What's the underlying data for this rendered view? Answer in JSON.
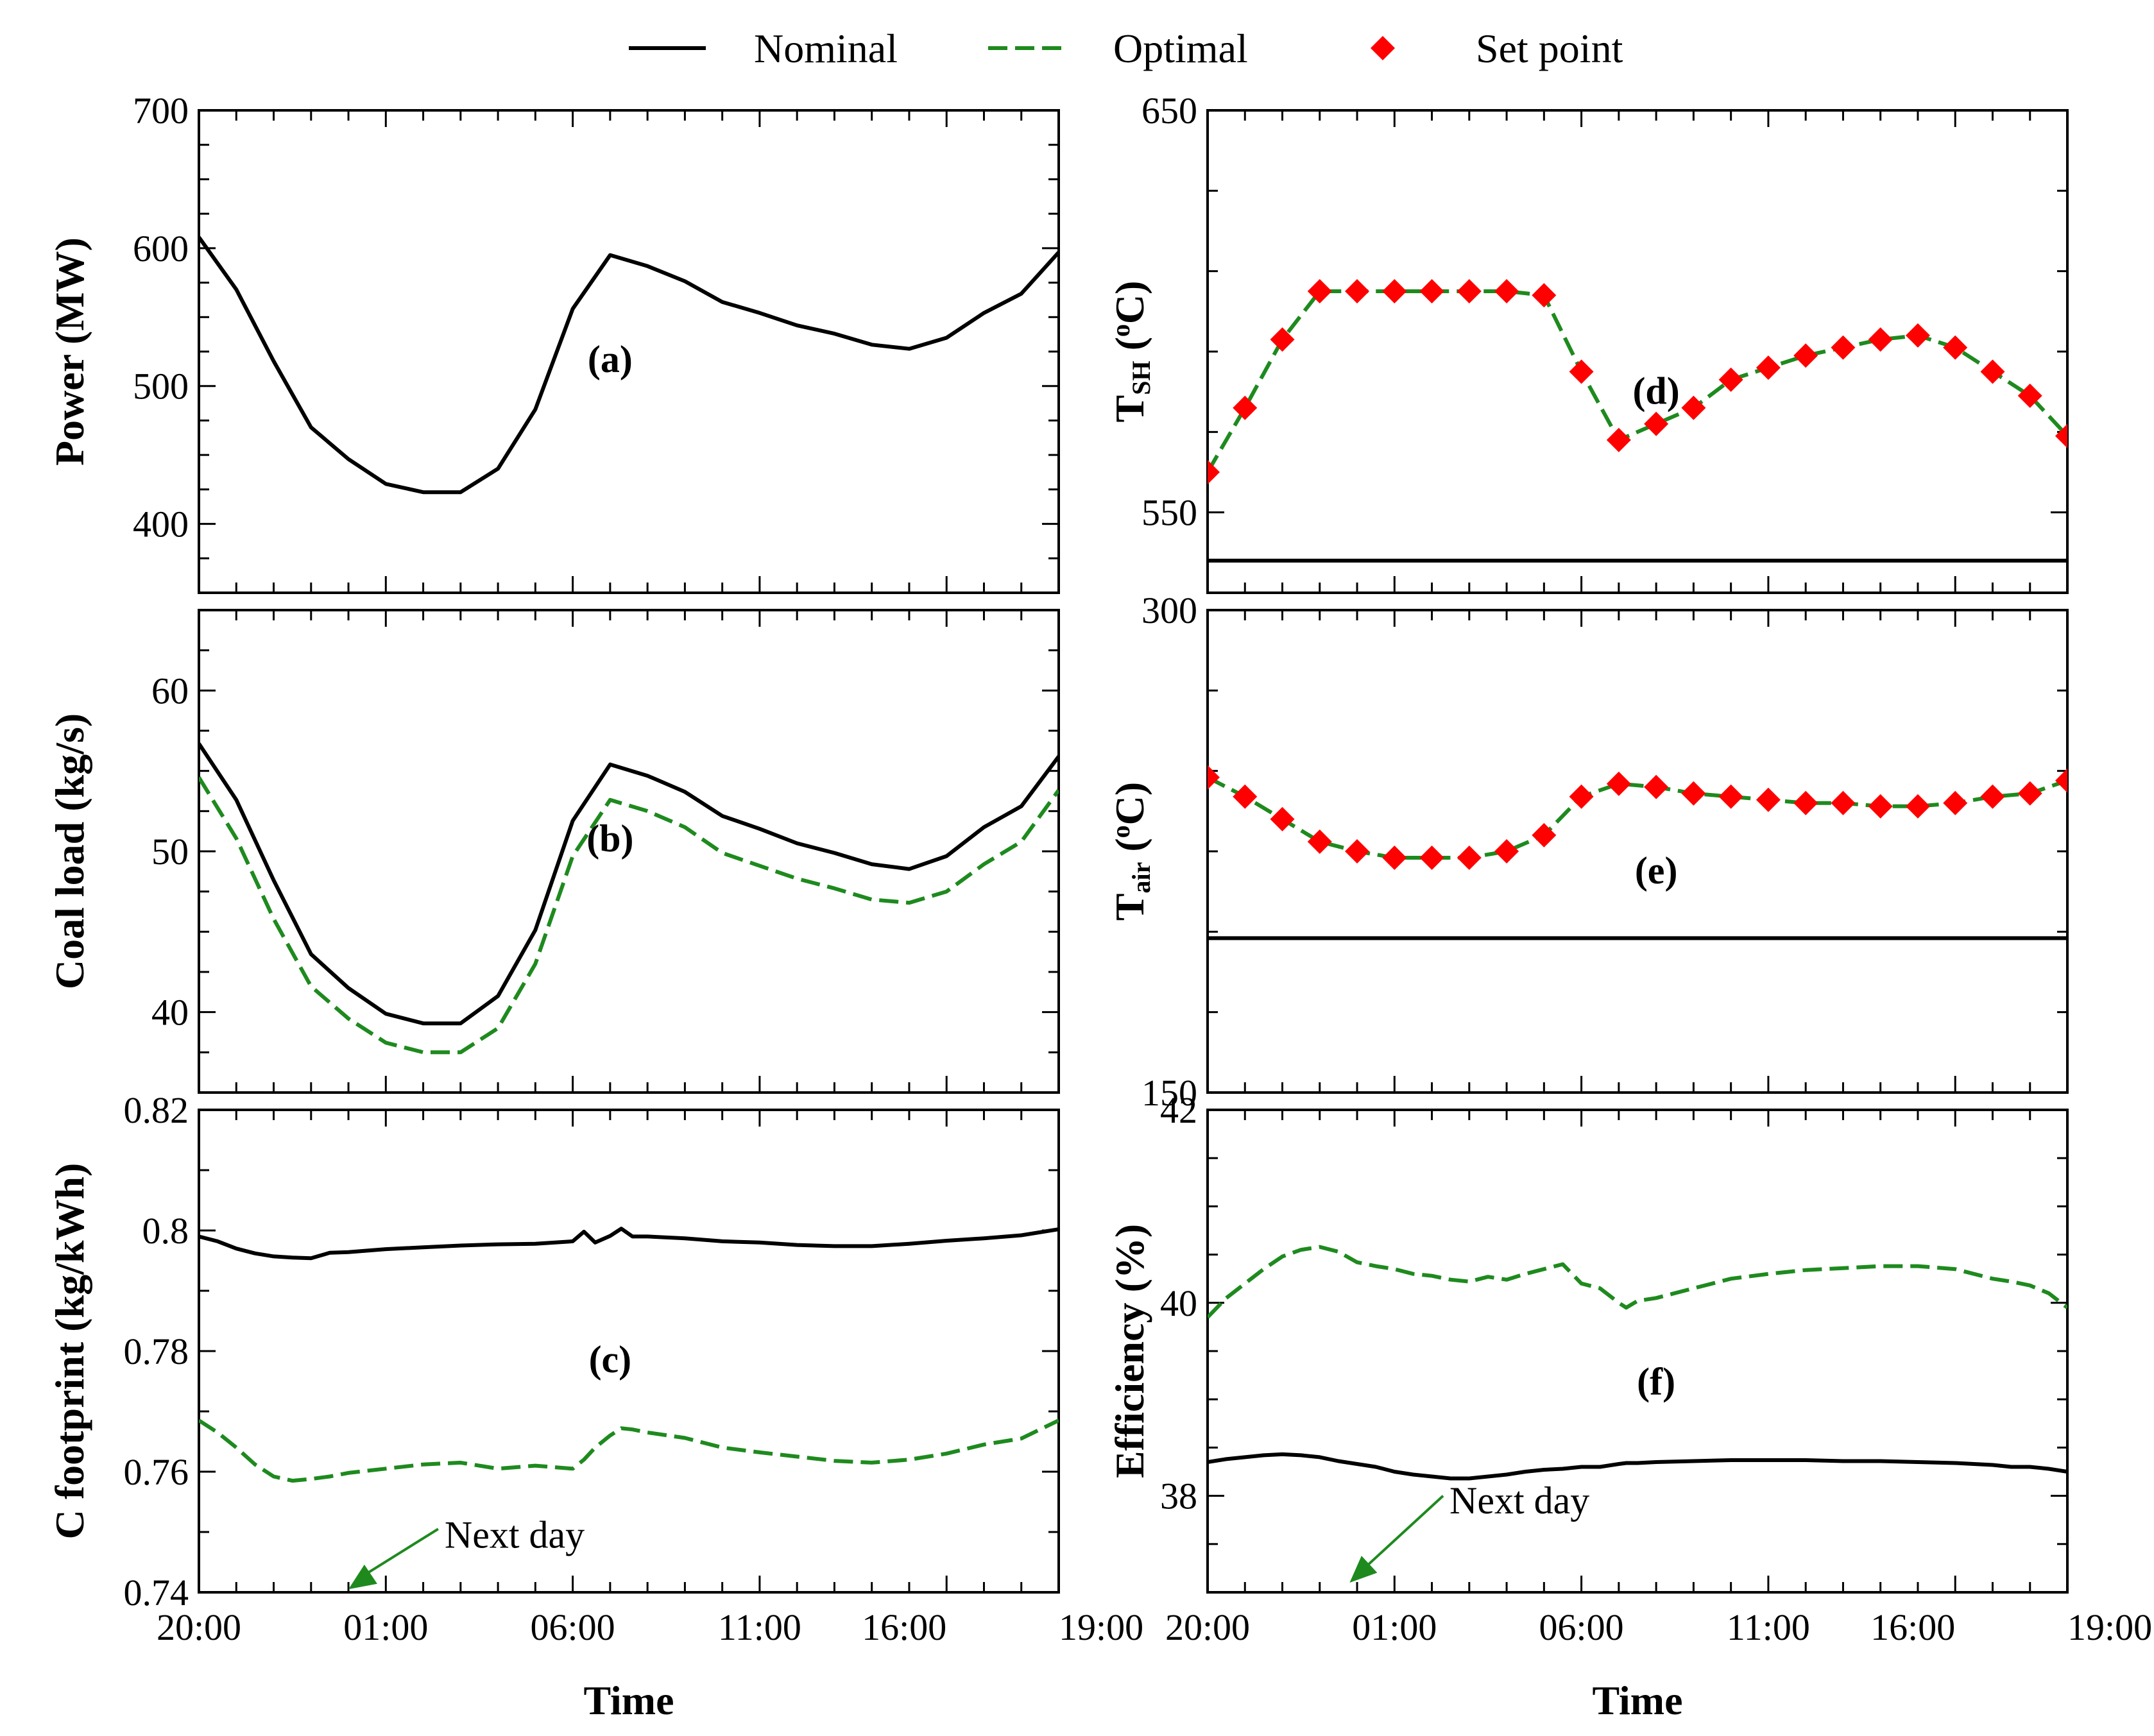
{
  "colors": {
    "nominal": "#000000",
    "optimal": "#1e8a1e",
    "setpoint": "#ff0000"
  },
  "legend": [
    {
      "key": "nominal",
      "label": "Nominal",
      "style": "solid"
    },
    {
      "key": "optimal",
      "label": "Optimal",
      "style": "dashed"
    },
    {
      "key": "setpoint",
      "label": "Set point",
      "style": "diamond"
    }
  ],
  "x_tick_labels": [
    "20:00",
    "01:00",
    "06:00",
    "11:00",
    "16:00",
    "19:00"
  ],
  "x_label": "Time",
  "chart_data": [
    {
      "id": "a",
      "type": "line",
      "label": "(a)",
      "ylabel": "Power (MW)",
      "ylabel_parts": [
        "Power (MW)"
      ],
      "x_range": [
        0,
        23
      ],
      "ylim": [
        350,
        700
      ],
      "yticks": [
        400,
        500,
        600,
        700
      ],
      "minor_per_major": 4,
      "label_pos": [
        11,
        510
      ],
      "x": [
        0,
        1,
        2,
        3,
        4,
        5,
        6,
        7,
        8,
        9,
        10,
        11,
        12,
        13,
        14,
        15,
        16,
        17,
        18,
        19,
        20,
        21,
        22,
        23
      ],
      "series": [
        {
          "name": "Nominal",
          "key": "nominal",
          "style": "solid",
          "values": [
            608,
            570,
            518,
            470,
            447,
            429,
            423,
            423,
            440,
            483,
            556,
            595,
            587,
            576,
            561,
            553,
            544,
            538,
            530,
            527,
            535,
            553,
            567,
            597
          ]
        }
      ]
    },
    {
      "id": "b",
      "type": "line",
      "label": "(b)",
      "ylabel": "Coal load (kg/s)",
      "ylabel_parts": [
        "Coal load (kg/s)"
      ],
      "x_range": [
        0,
        23
      ],
      "ylim": [
        35,
        65
      ],
      "yticks": [
        40,
        50,
        60
      ],
      "minor_per_major": 4,
      "label_pos": [
        11,
        50
      ],
      "x": [
        0,
        1,
        2,
        3,
        4,
        5,
        6,
        7,
        8,
        9,
        10,
        11,
        12,
        13,
        14,
        15,
        16,
        17,
        18,
        19,
        20,
        21,
        22,
        23
      ],
      "series": [
        {
          "name": "Nominal",
          "key": "nominal",
          "style": "solid",
          "values": [
            56.7,
            53.2,
            48.2,
            43.6,
            41.5,
            39.9,
            39.3,
            39.3,
            41.0,
            45.1,
            51.9,
            55.4,
            54.7,
            53.7,
            52.2,
            51.4,
            50.5,
            49.9,
            49.2,
            48.9,
            49.7,
            51.5,
            52.8,
            55.9
          ]
        },
        {
          "name": "Optimal",
          "key": "optimal",
          "style": "dashed",
          "values": [
            54.6,
            50.8,
            45.8,
            41.6,
            39.6,
            38.1,
            37.5,
            37.5,
            39.0,
            43.0,
            49.7,
            53.2,
            52.5,
            51.5,
            49.9,
            49.1,
            48.3,
            47.7,
            47.0,
            46.8,
            47.5,
            49.2,
            50.6,
            53.8
          ]
        }
      ]
    },
    {
      "id": "c",
      "type": "line",
      "label": "(c)",
      "ylabel": "C footprint (kg/kWh)",
      "ylabel_parts": [
        "C footprint (kg/kWh)"
      ],
      "x_range": [
        0,
        23
      ],
      "ylim": [
        0.74,
        0.82
      ],
      "yticks": [
        0.74,
        0.76,
        0.78,
        0.8,
        0.82
      ],
      "ytick_labels": [
        "0.74",
        "0.76",
        "0.78",
        "0.8",
        "0.82"
      ],
      "minor_per_major": 2,
      "label_pos": [
        11,
        0.7765
      ],
      "annotation": {
        "text": "Next day",
        "arrow_from": [
          6.4,
          0.7505
        ],
        "arrow_to": [
          4.0,
          0.7405
        ],
        "text_at": [
          6.4,
          0.7495
        ]
      },
      "x": [
        0,
        0.5,
        1,
        1.5,
        2,
        2.5,
        3,
        3.5,
        4,
        5,
        6,
        7,
        8,
        9,
        10,
        10.3,
        10.6,
        11,
        11.3,
        11.6,
        12,
        13,
        14,
        15,
        16,
        17,
        18,
        19,
        20,
        21,
        22,
        23
      ],
      "series": [
        {
          "name": "Nominal",
          "key": "nominal",
          "style": "solid",
          "values": [
            0.799,
            0.7982,
            0.797,
            0.7962,
            0.7957,
            0.7955,
            0.7954,
            0.7963,
            0.7964,
            0.7969,
            0.7972,
            0.7975,
            0.7977,
            0.7978,
            0.7982,
            0.7998,
            0.798,
            0.7991,
            0.8003,
            0.799,
            0.799,
            0.7987,
            0.7982,
            0.798,
            0.7976,
            0.7974,
            0.7974,
            0.7978,
            0.7983,
            0.7987,
            0.7992,
            0.8002
          ]
        },
        {
          "name": "Optimal",
          "key": "optimal",
          "style": "dashed",
          "values": [
            0.7685,
            0.7665,
            0.764,
            0.7612,
            0.7592,
            0.7585,
            0.7588,
            0.7592,
            0.7598,
            0.7605,
            0.7612,
            0.7615,
            0.7605,
            0.761,
            0.7605,
            0.762,
            0.764,
            0.766,
            0.7672,
            0.767,
            0.7665,
            0.7656,
            0.764,
            0.7632,
            0.7625,
            0.7618,
            0.7615,
            0.762,
            0.763,
            0.7645,
            0.7655,
            0.7685
          ]
        }
      ]
    },
    {
      "id": "d",
      "type": "line",
      "label": "(d)",
      "ylabel": "TSH (oC)",
      "ylabel_parts": [
        "T",
        "SH",
        " (",
        "o",
        "C)"
      ],
      "x_range": [
        0,
        23
      ],
      "ylim": [
        530,
        650
      ],
      "yticks": [
        550,
        650
      ],
      "minor_per_major": 5,
      "label_pos": [
        12,
        577
      ],
      "x": [
        0,
        1,
        2,
        3,
        4,
        5,
        6,
        7,
        8,
        9,
        10,
        11,
        12,
        13,
        14,
        15,
        16,
        17,
        18,
        19,
        20,
        21,
        22,
        23
      ],
      "series": [
        {
          "name": "Optimal",
          "key": "optimal",
          "style": "dashed",
          "values": [
            560,
            576,
            593,
            605,
            605,
            605,
            605,
            605,
            605,
            604,
            585,
            568,
            572,
            576,
            583,
            586,
            589,
            591,
            593,
            594,
            591,
            585,
            579,
            569
          ]
        },
        {
          "name": "Set point",
          "key": "setpoint",
          "style": "diamond",
          "values": [
            560,
            576,
            593,
            605,
            605,
            605,
            605,
            605,
            605,
            604,
            585,
            568,
            572,
            576,
            583,
            586,
            589,
            591,
            593,
            594,
            591,
            585,
            579,
            569
          ]
        },
        {
          "name": "Nominal",
          "key": "nominal",
          "style": "solid",
          "values": [
            538,
            538,
            538,
            538,
            538,
            538,
            538,
            538,
            538,
            538,
            538,
            538,
            538,
            538,
            538,
            538,
            538,
            538,
            538,
            538,
            538,
            538,
            538,
            538
          ]
        }
      ]
    },
    {
      "id": "e",
      "type": "line",
      "label": "(e)",
      "ylabel": "Tair (oC)",
      "ylabel_parts": [
        "T",
        "air",
        " (",
        "o",
        "C)"
      ],
      "x_range": [
        0,
        23
      ],
      "ylim": [
        150,
        300
      ],
      "yticks": [
        150,
        300
      ],
      "minor_per_major": 6,
      "label_pos": [
        12,
        215
      ],
      "x": [
        0,
        1,
        2,
        3,
        4,
        5,
        6,
        7,
        8,
        9,
        10,
        11,
        12,
        13,
        14,
        15,
        16,
        17,
        18,
        19,
        20,
        21,
        22,
        23
      ],
      "series": [
        {
          "name": "Optimal",
          "key": "optimal",
          "style": "dashed",
          "values": [
            248,
            242,
            235,
            228,
            225,
            223,
            223,
            223,
            225,
            230,
            242,
            246,
            245,
            243,
            242,
            241,
            240,
            240,
            239,
            239,
            240,
            242,
            243,
            247
          ]
        },
        {
          "name": "Set point",
          "key": "setpoint",
          "style": "diamond",
          "values": [
            248,
            242,
            235,
            228,
            225,
            223,
            223,
            223,
            225,
            230,
            242,
            246,
            245,
            243,
            242,
            241,
            240,
            240,
            239,
            239,
            240,
            242,
            243,
            247
          ]
        },
        {
          "name": "Nominal",
          "key": "nominal",
          "style": "solid",
          "values": [
            198,
            198,
            198,
            198,
            198,
            198,
            198,
            198,
            198,
            198,
            198,
            198,
            198,
            198,
            198,
            198,
            198,
            198,
            198,
            198,
            198,
            198,
            198,
            198
          ]
        }
      ]
    },
    {
      "id": "f",
      "type": "line",
      "label": "(f)",
      "ylabel": "Efficiency (%)",
      "ylabel_parts": [
        "Efficiency (%)"
      ],
      "x_range": [
        0,
        23
      ],
      "ylim": [
        37,
        42
      ],
      "yticks": [
        38,
        40,
        42
      ],
      "minor_per_major": 4,
      "label_pos": [
        12,
        39.05
      ],
      "annotation": {
        "text": "Next day",
        "arrow_from": [
          6.3,
          38.0
        ],
        "arrow_to": [
          3.8,
          37.1
        ],
        "text_at": [
          6.3,
          37.95
        ]
      },
      "x": [
        0,
        0.5,
        1,
        1.5,
        2,
        2.5,
        3,
        3.5,
        4,
        4.5,
        5,
        5.5,
        6,
        6.5,
        7,
        7.5,
        8,
        8.5,
        9,
        9.5,
        10,
        10.5,
        11,
        11.2,
        11.5,
        12,
        13,
        14,
        15,
        16,
        17,
        18,
        19,
        20,
        20.5,
        21,
        21.5,
        22,
        22.5,
        23
      ],
      "series": [
        {
          "name": "Optimal",
          "key": "optimal",
          "style": "dashed",
          "values": [
            39.85,
            40.05,
            40.2,
            40.35,
            40.48,
            40.55,
            40.58,
            40.53,
            40.42,
            40.38,
            40.35,
            40.3,
            40.28,
            40.24,
            40.22,
            40.27,
            40.24,
            40.3,
            40.35,
            40.4,
            40.2,
            40.15,
            40.0,
            39.95,
            40.02,
            40.05,
            40.15,
            40.25,
            40.3,
            40.34,
            40.36,
            40.38,
            40.38,
            40.35,
            40.3,
            40.25,
            40.22,
            40.18,
            40.1,
            39.95
          ]
        },
        {
          "name": "Nominal",
          "key": "nominal",
          "style": "solid",
          "values": [
            38.35,
            38.38,
            38.4,
            38.42,
            38.43,
            38.42,
            38.4,
            38.36,
            38.33,
            38.3,
            38.25,
            38.22,
            38.2,
            38.18,
            38.18,
            38.2,
            38.22,
            38.25,
            38.27,
            38.28,
            38.3,
            38.3,
            38.33,
            38.34,
            38.34,
            38.35,
            38.36,
            38.37,
            38.37,
            38.37,
            38.36,
            38.36,
            38.35,
            38.34,
            38.33,
            38.32,
            38.3,
            38.3,
            38.28,
            38.25
          ]
        }
      ]
    }
  ]
}
